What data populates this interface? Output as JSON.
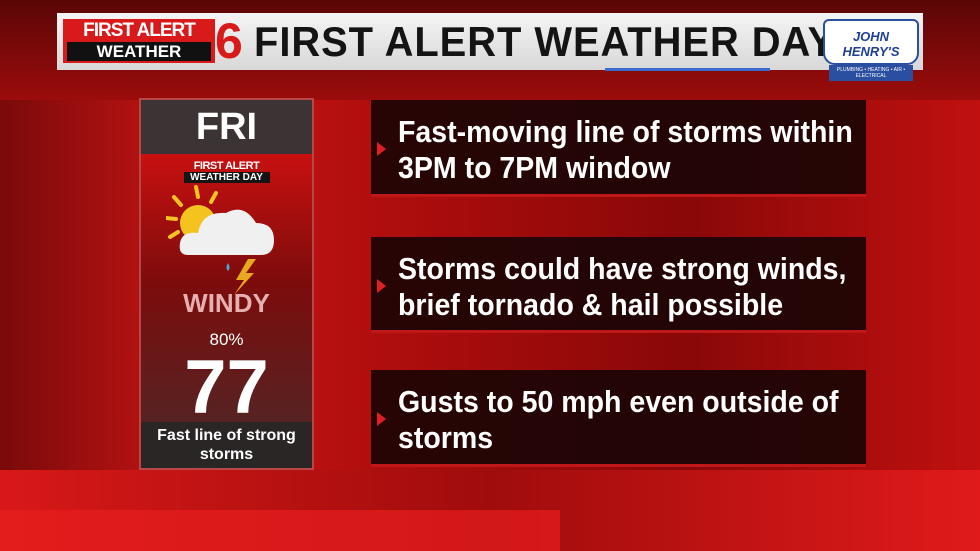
{
  "header": {
    "logo_line1": "FIRST ALERT",
    "logo_line2": "WEATHER",
    "logo_number": "6",
    "title": "FIRST ALERT WEATHER DAY",
    "sponsor": "JOHN HENRY'S",
    "sponsor_tagline": "PLUMBING • HEATING • AIR • ELECTRICAL"
  },
  "forecast": {
    "day": "FRI",
    "badge_line1": "FIRST ALERT",
    "badge_line2": "WEATHER DAY",
    "icon": "partly-cloudy-thunderstorm-icon",
    "condition": "WINDY",
    "precip_chance": "80%",
    "high_temp": "77",
    "caption": "Fast line of strong storms"
  },
  "bullets": [
    {
      "text": "Fast-moving line of storms within 3PM to 7PM window",
      "line1": "Fast-moving line of storms within",
      "line2": "3PM to 7PM window"
    },
    {
      "text": "Storms could have strong winds, brief tornado & hail possible",
      "line1": "Storms could have strong winds,",
      "line2": "brief tornado & hail possible"
    },
    {
      "text": "Gusts to 50 mph even outside of storms",
      "line1": "Gusts to 50 mph even outside of",
      "line2": "storms"
    }
  ],
  "colors": {
    "accent_red": "#d81a1a",
    "panel_dark": "#140505"
  }
}
